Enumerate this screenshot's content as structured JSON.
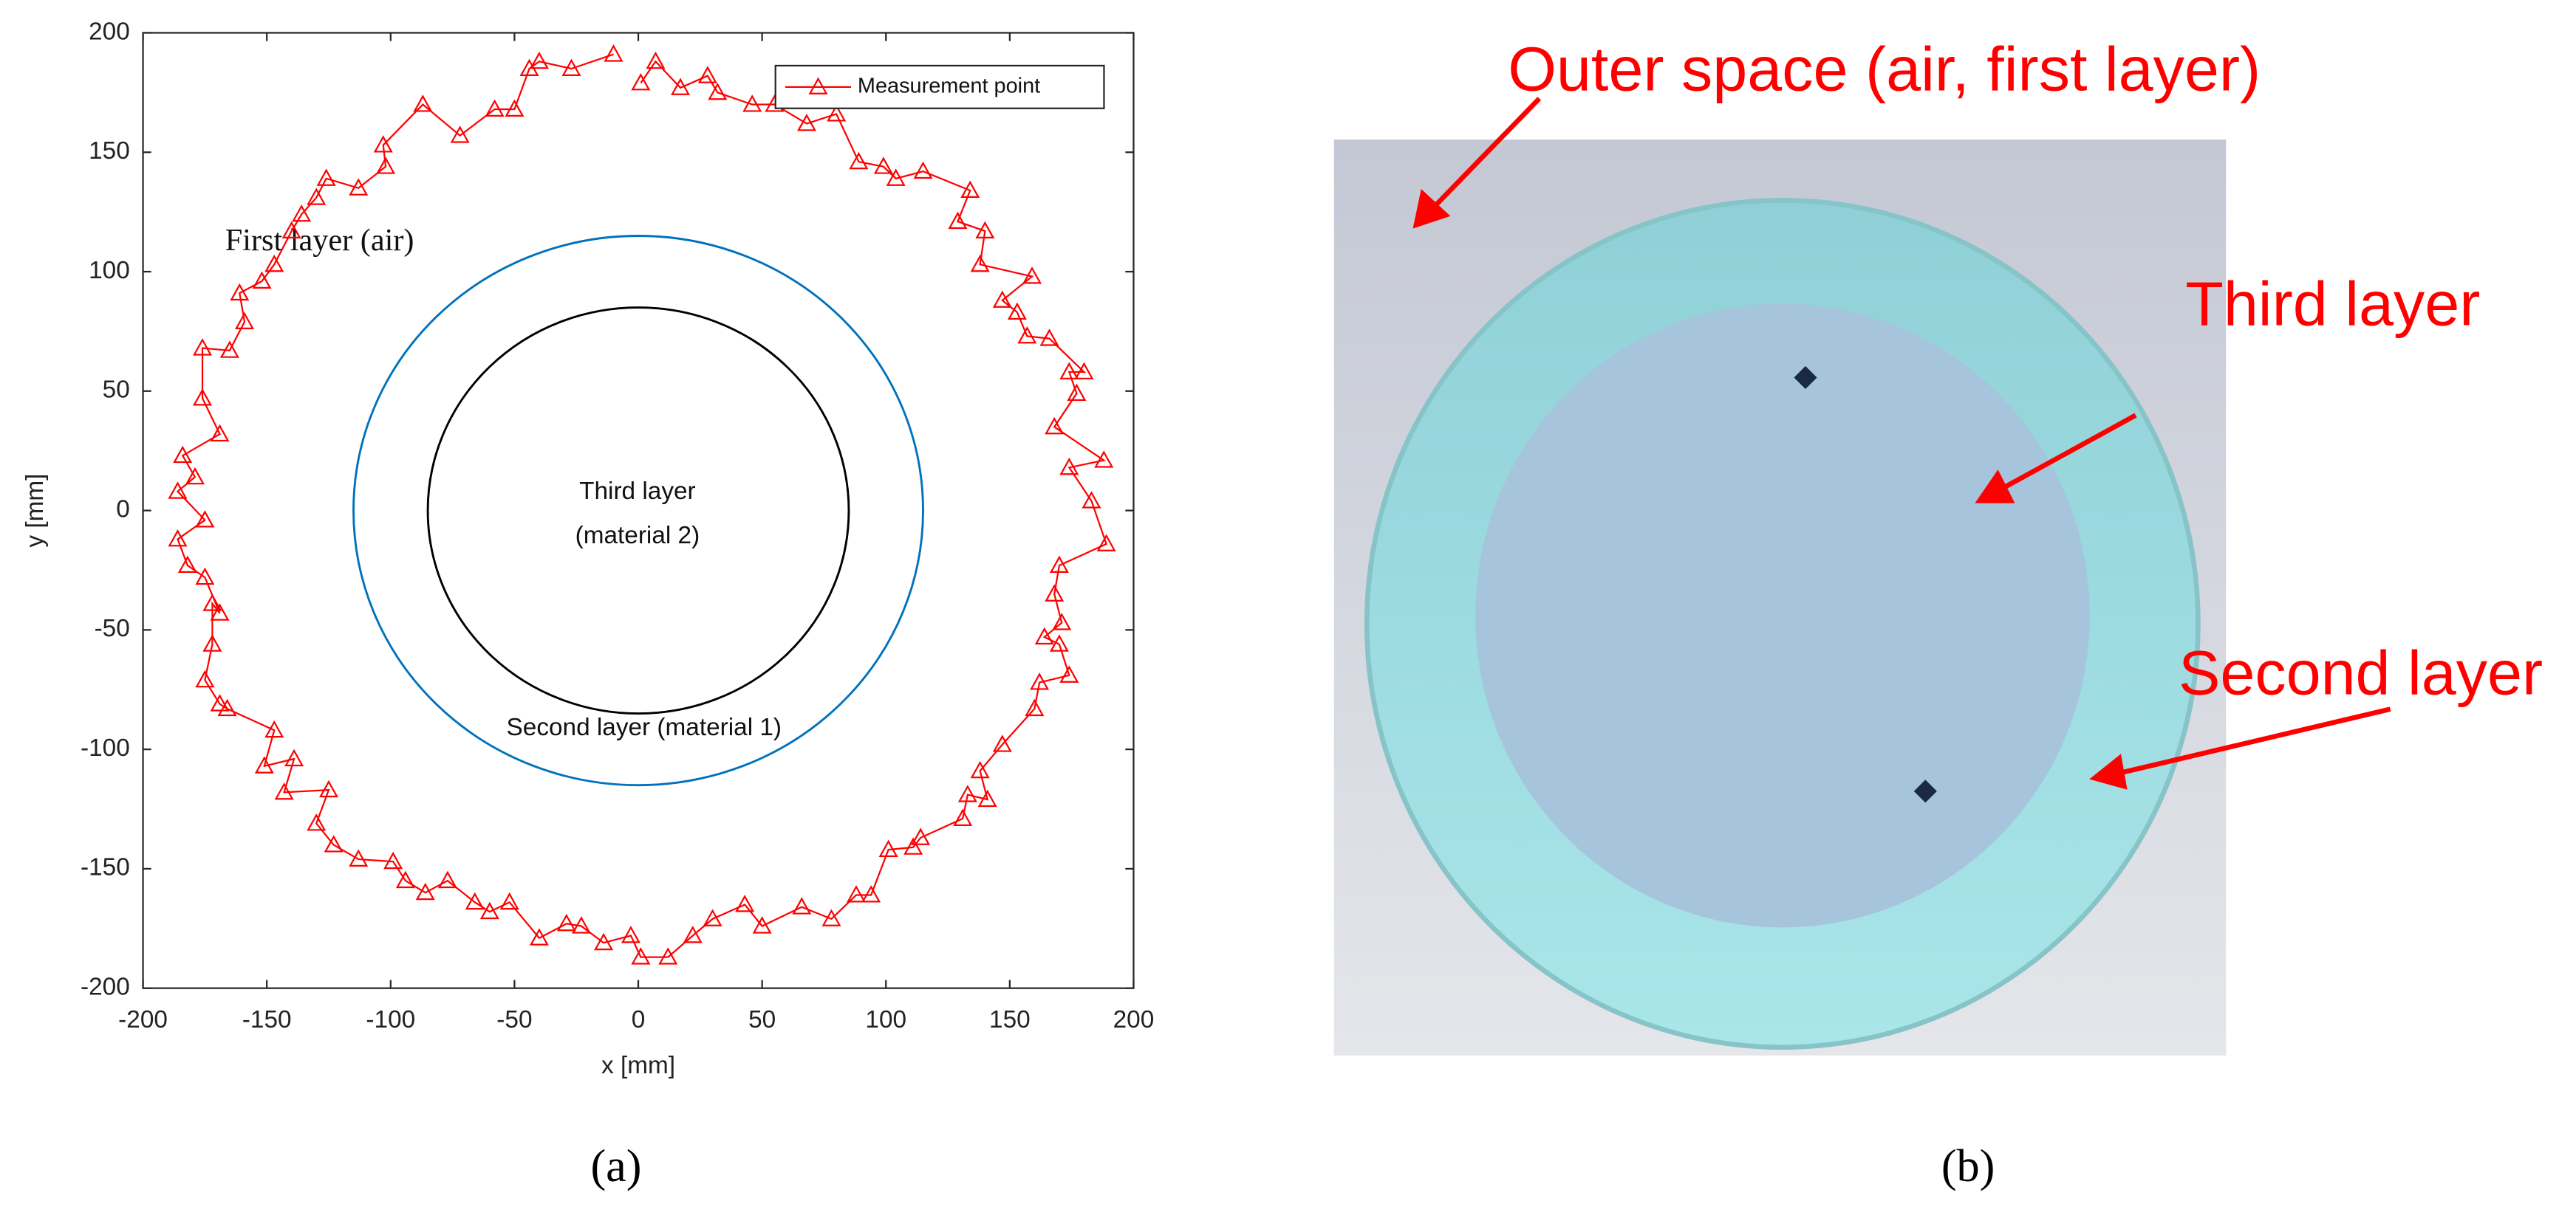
{
  "chart_data": {
    "type": "line",
    "x_label": "x [mm]",
    "y_label": "y [mm]",
    "xlim": [
      -200,
      200
    ],
    "ylim": [
      -200,
      200
    ],
    "xticks": [
      -200,
      -150,
      -100,
      -50,
      0,
      50,
      100,
      150,
      200
    ],
    "yticks": [
      -200,
      -150,
      -100,
      -50,
      0,
      50,
      100,
      150,
      200
    ],
    "grid": false,
    "legend": "upper right",
    "marker": "triangle",
    "x": [
      -10,
      -27,
      -40,
      -44,
      -50,
      -58,
      -72,
      -87,
      -103,
      -102,
      -113,
      -126,
      -130,
      -136,
      -140,
      -147,
      -152,
      -161,
      -159,
      -165,
      -176,
      -176,
      -169,
      -184,
      -179,
      -186,
      -175,
      -186,
      -182,
      -175,
      -169,
      -172,
      -172,
      -175,
      -169,
      -166,
      -147,
      -151,
      -139,
      -143,
      -125,
      -130,
      -123,
      -113,
      -99,
      -94,
      -86,
      -77,
      -66,
      -60,
      -52,
      -40,
      -29,
      -23,
      -14,
      -3,
      1,
      12,
      22,
      30,
      43,
      50,
      66,
      78,
      88,
      94,
      101,
      111,
      114,
      131,
      133,
      141,
      138,
      147,
      160,
      162,
      174,
      170,
      164,
      171,
      168,
      170,
      189,
      183,
      174,
      188,
      168,
      177,
      174,
      180,
      166,
      157,
      153,
      147,
      159,
      138,
      140,
      129,
      134,
      115,
      104,
      99,
      89,
      80,
      68,
      55,
      46,
      32,
      28,
      17,
      7,
      1
    ],
    "series": [
      {
        "name": "Measurement point",
        "color": "#ff0000",
        "values": [
          191,
          185,
          188,
          185,
          168,
          168,
          157,
          170,
          153,
          144,
          135,
          139,
          131,
          124,
          117,
          103,
          96,
          91,
          79,
          67,
          68,
          47,
          32,
          23,
          14,
          8,
          -4,
          -12,
          -23,
          -28,
          -43,
          -39,
          -56,
          -71,
          -81,
          -83,
          -92,
          -107,
          -104,
          -118,
          -117,
          -131,
          -140,
          -146,
          -147,
          -155,
          -160,
          -155,
          -164,
          -168,
          -164,
          -179,
          -173,
          -174,
          -181,
          -178,
          -187,
          -187,
          -178,
          -171,
          -165,
          -174,
          -166,
          -171,
          -161,
          -161,
          -142,
          -141,
          -137,
          -129,
          -119,
          -121,
          -109,
          -98,
          -83,
          -72,
          -69,
          -56,
          -53,
          -47,
          -35,
          -23,
          -14,
          4,
          18,
          21,
          35,
          49,
          58,
          58,
          72,
          73,
          83,
          88,
          98,
          103,
          117,
          121,
          134,
          142,
          139,
          144,
          146,
          166,
          162,
          170,
          170,
          175,
          182,
          177,
          188,
          179
        ]
      }
    ],
    "circles": [
      {
        "radius": 115,
        "color": "#0072bd"
      },
      {
        "radius": 85,
        "color": "#000000"
      }
    ],
    "annotations": [
      "First layer (air)",
      "Third layer",
      "(material 2)",
      "Second layer (material 1)"
    ]
  },
  "panel_b": {
    "labels": [
      "Outer space (air, first layer)",
      "Third layer",
      "Second layer"
    ]
  },
  "captions": [
    "(a)",
    "(b)"
  ]
}
